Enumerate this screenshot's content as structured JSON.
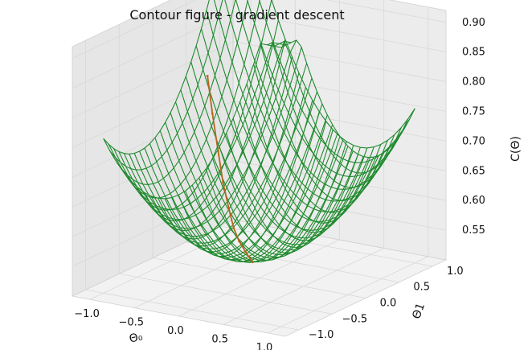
{
  "chart_data": {
    "type": "surface3d",
    "title": "Contour figure - gradient descent",
    "xlabel": "Θ₀",
    "ylabel": "Θ1",
    "zlabel": "C(Θ)",
    "xlim": [
      -1.2,
      1.2
    ],
    "ylim": [
      -1.2,
      1.2
    ],
    "zlim": [
      0.5,
      0.92
    ],
    "x_ticks": [
      "−1.0",
      "−0.5",
      "0.0",
      "0.5",
      "1.0"
    ],
    "y_ticks": [
      "−1.0",
      "−0.5",
      "0.0",
      "0.5",
      "1.0"
    ],
    "z_ticks": [
      "0.55",
      "0.60",
      "0.65",
      "0.70",
      "0.75",
      "0.80",
      "0.85",
      "0.90"
    ],
    "surface_color": "#1f8a2e",
    "path_color": "#b5651d",
    "grid": true,
    "descent_path": [
      {
        "x": -0.62,
        "y": 0.05,
        "z": 0.82
      },
      {
        "x": -0.55,
        "y": 0.03,
        "z": 0.76
      },
      {
        "x": -0.47,
        "y": 0.01,
        "z": 0.7
      },
      {
        "x": -0.4,
        "y": -0.01,
        "z": 0.65
      },
      {
        "x": -0.32,
        "y": -0.03,
        "z": 0.61
      },
      {
        "x": -0.25,
        "y": -0.05,
        "z": 0.58
      },
      {
        "x": -0.18,
        "y": -0.06,
        "z": 0.56
      },
      {
        "x": -0.1,
        "y": -0.07,
        "z": 0.545
      },
      {
        "x": -0.05,
        "y": -0.07,
        "z": 0.535
      },
      {
        "x": -0.02,
        "y": -0.07,
        "z": 0.53
      }
    ]
  }
}
